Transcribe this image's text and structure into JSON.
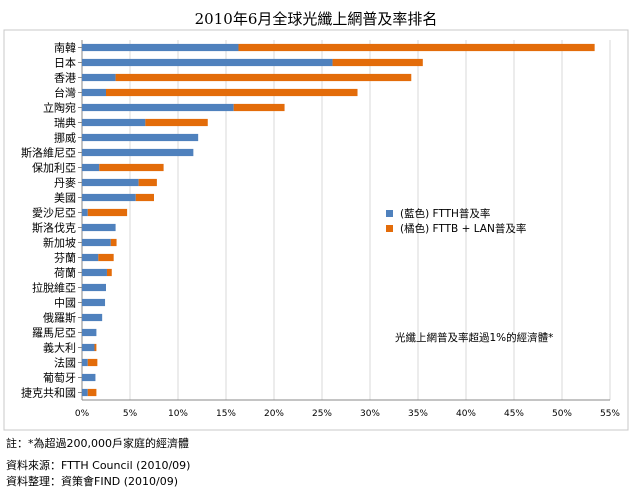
{
  "chart_data": {
    "type": "bar",
    "orientation": "horizontal",
    "stacked": true,
    "title": "2010年6月全球光纖上網普及率排名",
    "categories": [
      "南韓",
      "日本",
      "香港",
      "台灣",
      "立陶宛",
      "瑞典",
      "挪威",
      "斯洛維尼亞",
      "保加利亞",
      "丹麥",
      "美國",
      "愛沙尼亞",
      "斯洛伐克",
      "新加坡",
      "芬蘭",
      "荷蘭",
      "拉脫維亞",
      "中國",
      "俄羅斯",
      "羅馬尼亞",
      "義大利",
      "法國",
      "葡萄牙",
      "捷克共和國"
    ],
    "series": [
      {
        "name": "(藍色) FTTH普及率",
        "color": "#4f81bd",
        "values": [
          16.3,
          26.1,
          3.5,
          2.5,
          15.8,
          6.6,
          12.1,
          11.6,
          1.8,
          5.9,
          5.6,
          0.6,
          3.5,
          3.0,
          1.7,
          2.6,
          2.5,
          2.4,
          2.1,
          1.5,
          1.3,
          0.6,
          1.4,
          0.6
        ]
      },
      {
        "name": "(橘色) FTTB + LAN普及率",
        "color": "#e36c0a",
        "values": [
          37.1,
          9.4,
          30.8,
          26.2,
          5.3,
          6.5,
          0,
          0,
          6.7,
          1.9,
          1.9,
          4.1,
          0,
          0.6,
          1.6,
          0.5,
          0,
          0,
          0,
          0,
          0.2,
          1.0,
          0,
          0.9
        ]
      }
    ],
    "xlim": [
      0,
      55
    ],
    "xticks": [
      "0%",
      "5%",
      "10%",
      "15%",
      "20%",
      "25%",
      "30%",
      "35%",
      "40%",
      "45%",
      "50%",
      "55%"
    ],
    "grid": true,
    "legend_position": "right",
    "annotation": "光纖上網普及率超過1%的經濟體*"
  },
  "notes": {
    "note": "註：*為超過200,000戶家庭的經濟體",
    "source": "資料來源：FTTH  Council (2010/09)",
    "compiled": "資料整理：資策會FIND (2010/09)"
  }
}
